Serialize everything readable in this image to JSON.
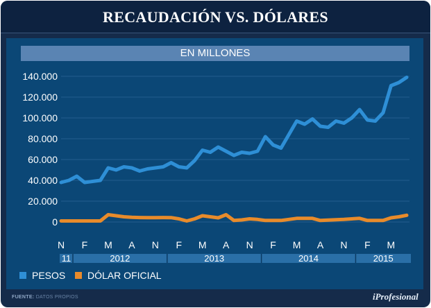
{
  "chart_data": {
    "type": "line",
    "title": "RECAUDACIÓN VS. DÓLARES",
    "subtitle": "EN MILLONES",
    "y_ticks": [
      "0",
      "20.000",
      "40.000",
      "60.000",
      "80.000",
      "100.000",
      "120.000",
      "140.000"
    ],
    "y_tick_values": [
      0,
      20000,
      40000,
      60000,
      80000,
      100000,
      120000,
      140000
    ],
    "ylim": [
      -8000,
      148000
    ],
    "month_labels": [
      {
        "label": "N",
        "index": 0
      },
      {
        "label": "F",
        "index": 3
      },
      {
        "label": "M",
        "index": 6
      },
      {
        "label": "A",
        "index": 9
      },
      {
        "label": "N",
        "index": 12
      },
      {
        "label": "F",
        "index": 15
      },
      {
        "label": "M",
        "index": 18
      },
      {
        "label": "A",
        "index": 21
      },
      {
        "label": "N",
        "index": 24
      },
      {
        "label": "F",
        "index": 27
      },
      {
        "label": "M",
        "index": 30
      },
      {
        "label": "A",
        "index": 33
      },
      {
        "label": "N",
        "index": 36
      },
      {
        "label": "F",
        "index": 39
      },
      {
        "label": "M",
        "index": 42
      }
    ],
    "year_labels": [
      {
        "label": "11",
        "start": 0,
        "end": 1.5
      },
      {
        "label": "2012",
        "start": 1.5,
        "end": 13.5
      },
      {
        "label": "2013",
        "start": 13.5,
        "end": 25.5
      },
      {
        "label": "2014",
        "start": 25.5,
        "end": 37.5
      },
      {
        "label": "2015",
        "start": 37.5,
        "end": 45
      }
    ],
    "series": [
      {
        "name": "PESOS",
        "color": "#2e8fd6",
        "values": [
          38000,
          40000,
          44000,
          38000,
          39000,
          40000,
          52000,
          50000,
          53000,
          52000,
          49000,
          51000,
          52000,
          53000,
          57000,
          53000,
          52000,
          59000,
          69000,
          67000,
          72000,
          68000,
          64000,
          67000,
          66000,
          68000,
          82000,
          74000,
          71000,
          84000,
          97000,
          94000,
          99000,
          92000,
          91000,
          97000,
          95000,
          100000,
          108000,
          98000,
          97000,
          105000,
          131000,
          134000,
          139000
        ]
      },
      {
        "name": "DÓLAR OFICIAL",
        "color": "#e88b2b",
        "values": [
          1000,
          1000,
          1000,
          1000,
          1000,
          1000,
          7000,
          6000,
          5000,
          4500,
          4300,
          4200,
          4200,
          4300,
          4200,
          3000,
          1000,
          3000,
          6000,
          5000,
          4000,
          7000,
          1500,
          2000,
          3000,
          2500,
          1500,
          1500,
          1500,
          2500,
          3500,
          3500,
          3500,
          1500,
          1800,
          2200,
          2500,
          3000,
          3500,
          1500,
          1500,
          1500,
          4000,
          5000,
          6500
        ]
      }
    ]
  },
  "legend": {
    "pesos": "PESOS",
    "dolar": "DÓLAR OFICIAL"
  },
  "footer": {
    "source_label": "FUENTE:",
    "source_text": "DATOS PROPIOS",
    "brand": "iProfesional"
  }
}
